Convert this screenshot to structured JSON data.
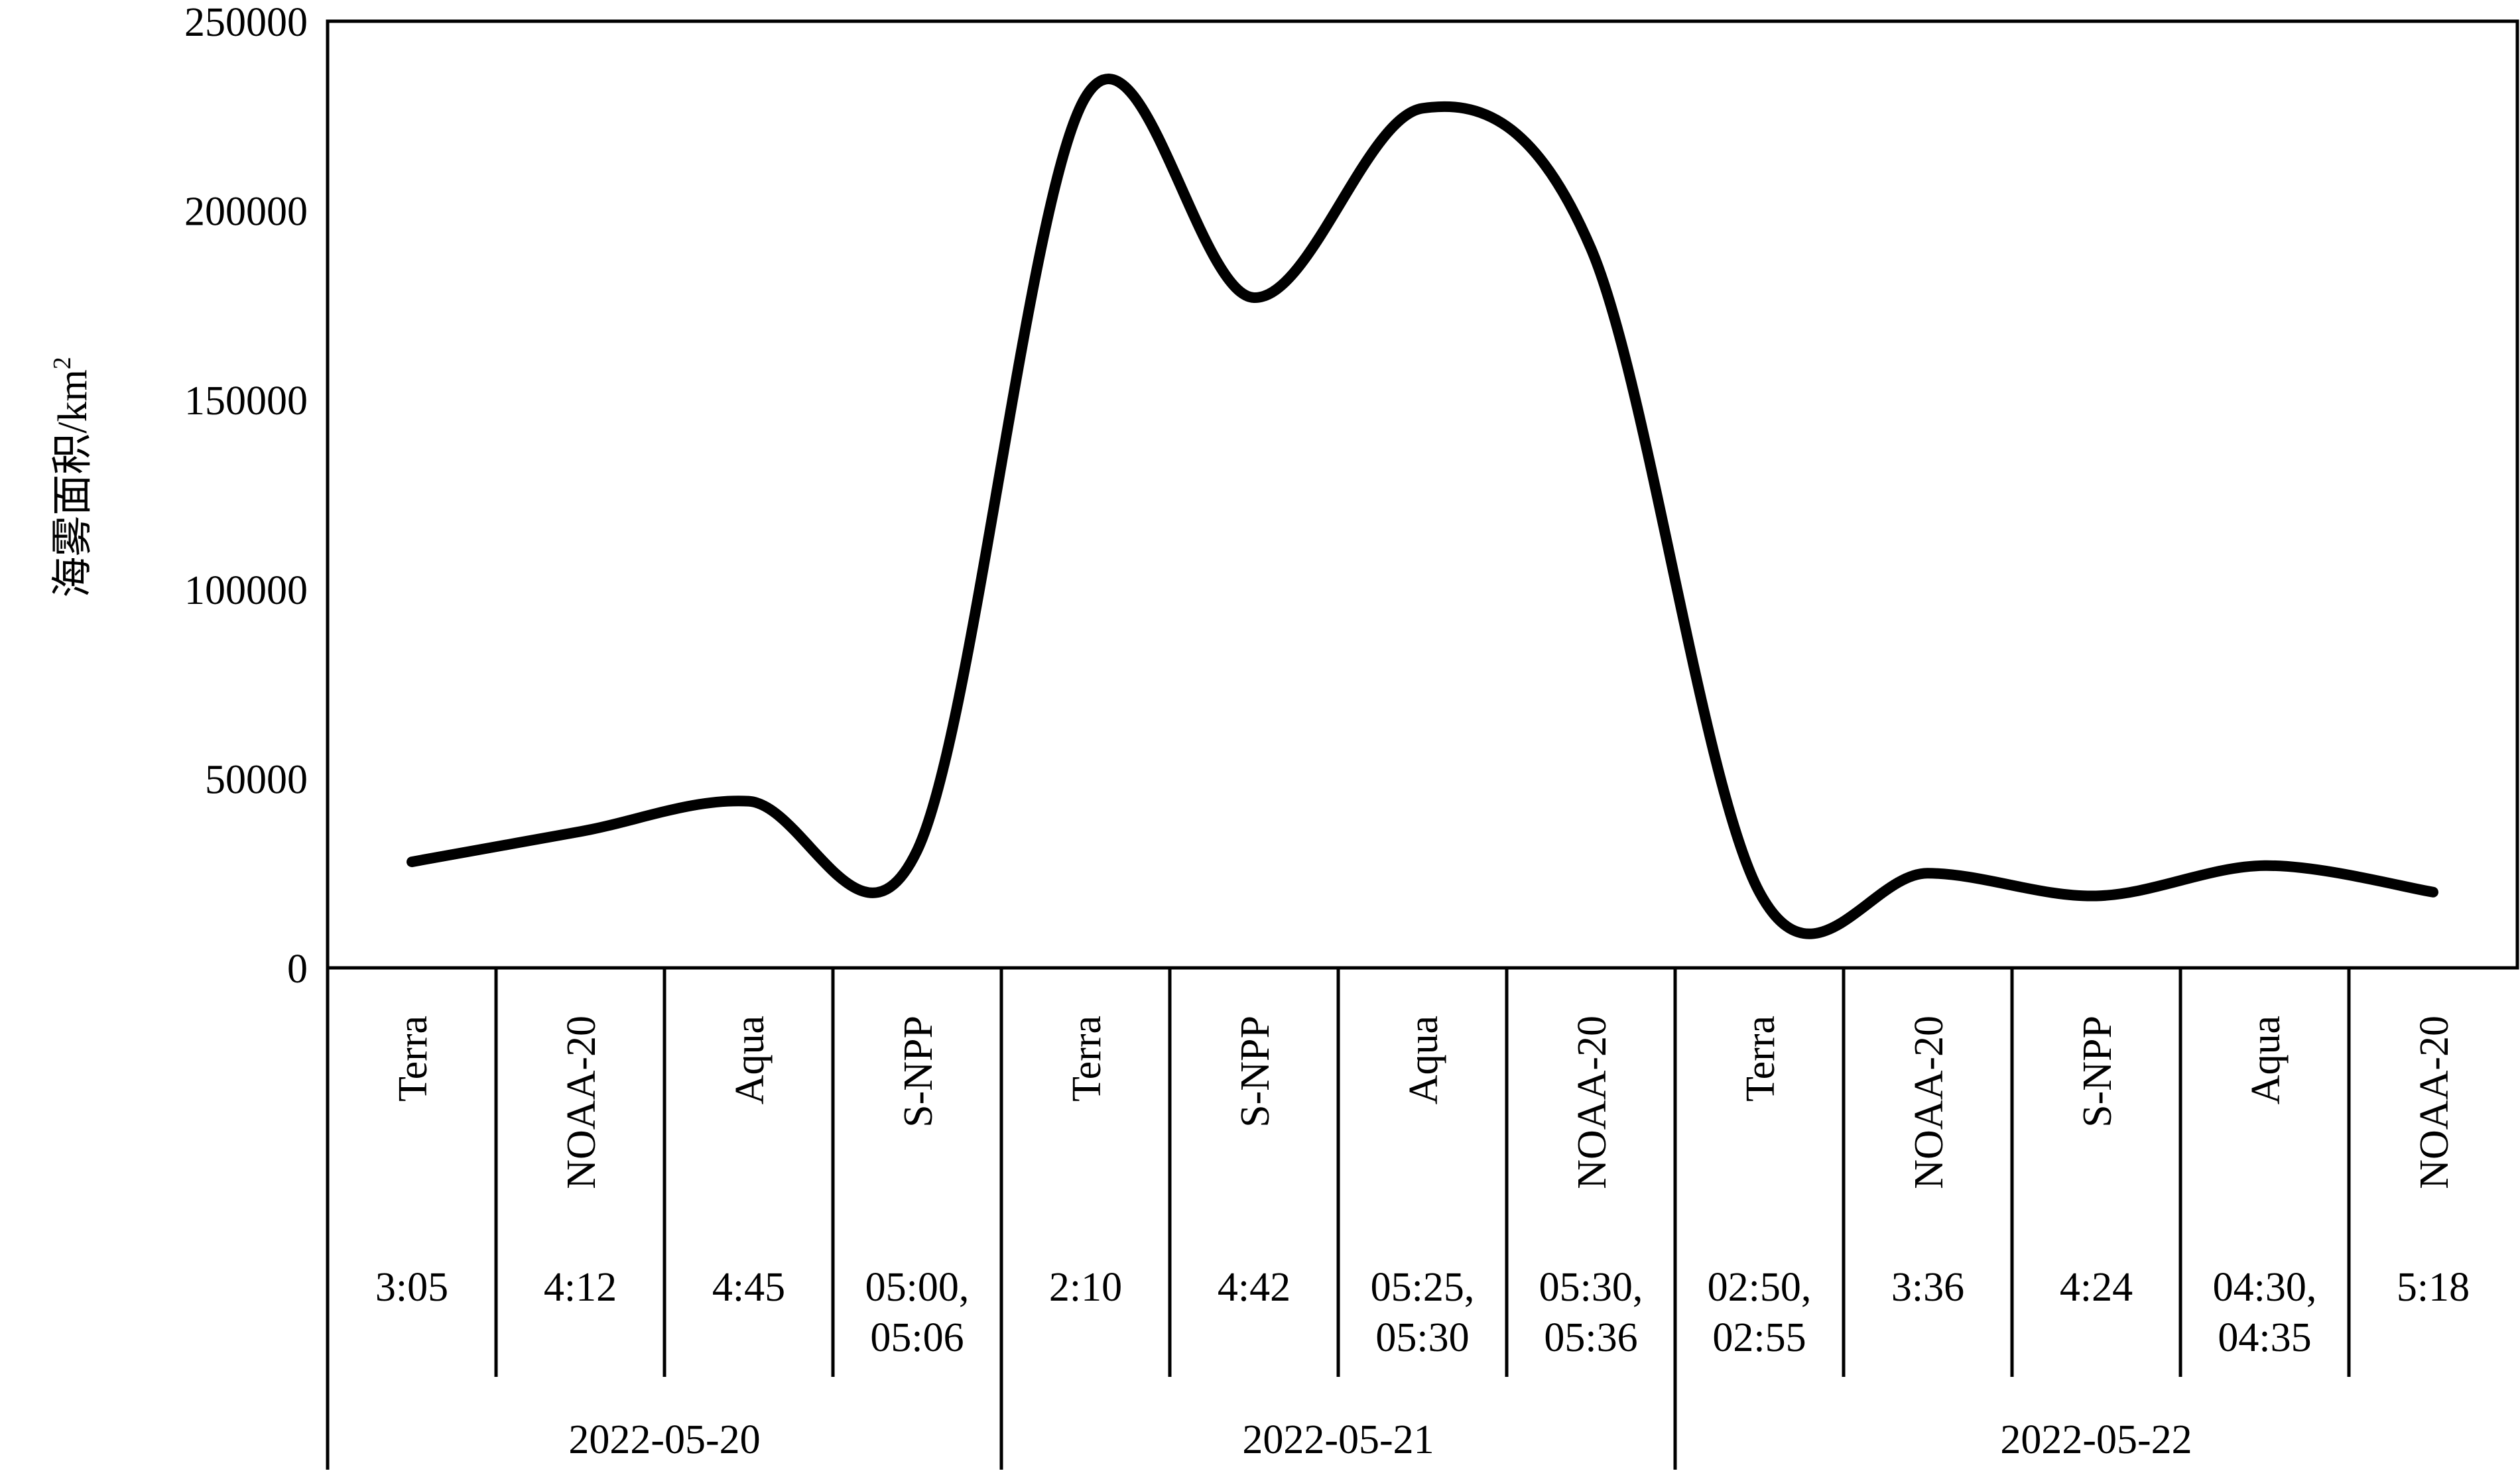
{
  "chart_data": {
    "type": "line",
    "title": "",
    "ylabel": "海雾面积/km",
    "ylabel_superscript": "2",
    "ylim": [
      0,
      250000
    ],
    "yticks": [
      "0",
      "50000",
      "100000",
      "150000",
      "200000",
      "250000"
    ],
    "smooth": true,
    "grid": false,
    "legend": "none",
    "line_color": "#000000",
    "categories": [
      {
        "satellite": "Terra",
        "time": "3:05",
        "date": "2022-05-20"
      },
      {
        "satellite": "NOAA-20",
        "time": "4:12",
        "date": "2022-05-20"
      },
      {
        "satellite": "Aqua",
        "time": "4:45",
        "date": "2022-05-20"
      },
      {
        "satellite": "S-NPP",
        "time": "05:00,\n05:06",
        "date": "2022-05-20"
      },
      {
        "satellite": "Terra",
        "time": "2:10",
        "date": "2022-05-21"
      },
      {
        "satellite": "S-NPP",
        "time": "4:42",
        "date": "2022-05-21"
      },
      {
        "satellite": "Aqua",
        "time": "05:25,\n05:30",
        "date": "2022-05-21"
      },
      {
        "satellite": "NOAA-20",
        "time": "05:30,\n05:36",
        "date": "2022-05-21"
      },
      {
        "satellite": "Terra",
        "time": "02:50,\n02:55",
        "date": "2022-05-22"
      },
      {
        "satellite": "NOAA-20",
        "time": "3:36",
        "date": "2022-05-22"
      },
      {
        "satellite": "S-NPP",
        "time": "4:24",
        "date": "2022-05-22"
      },
      {
        "satellite": "Aqua",
        "time": "04:30,\n04:35",
        "date": "2022-05-22"
      },
      {
        "satellite": "NOAA-20",
        "time": "5:18",
        "date": "2022-05-22"
      }
    ],
    "dates": [
      "2022-05-20",
      "2022-05-21",
      "2022-05-22"
    ],
    "values": [
      28000,
      36000,
      44000,
      31000,
      230000,
      177000,
      227000,
      190000,
      20000,
      25000,
      19000,
      27000,
      20000
    ]
  }
}
